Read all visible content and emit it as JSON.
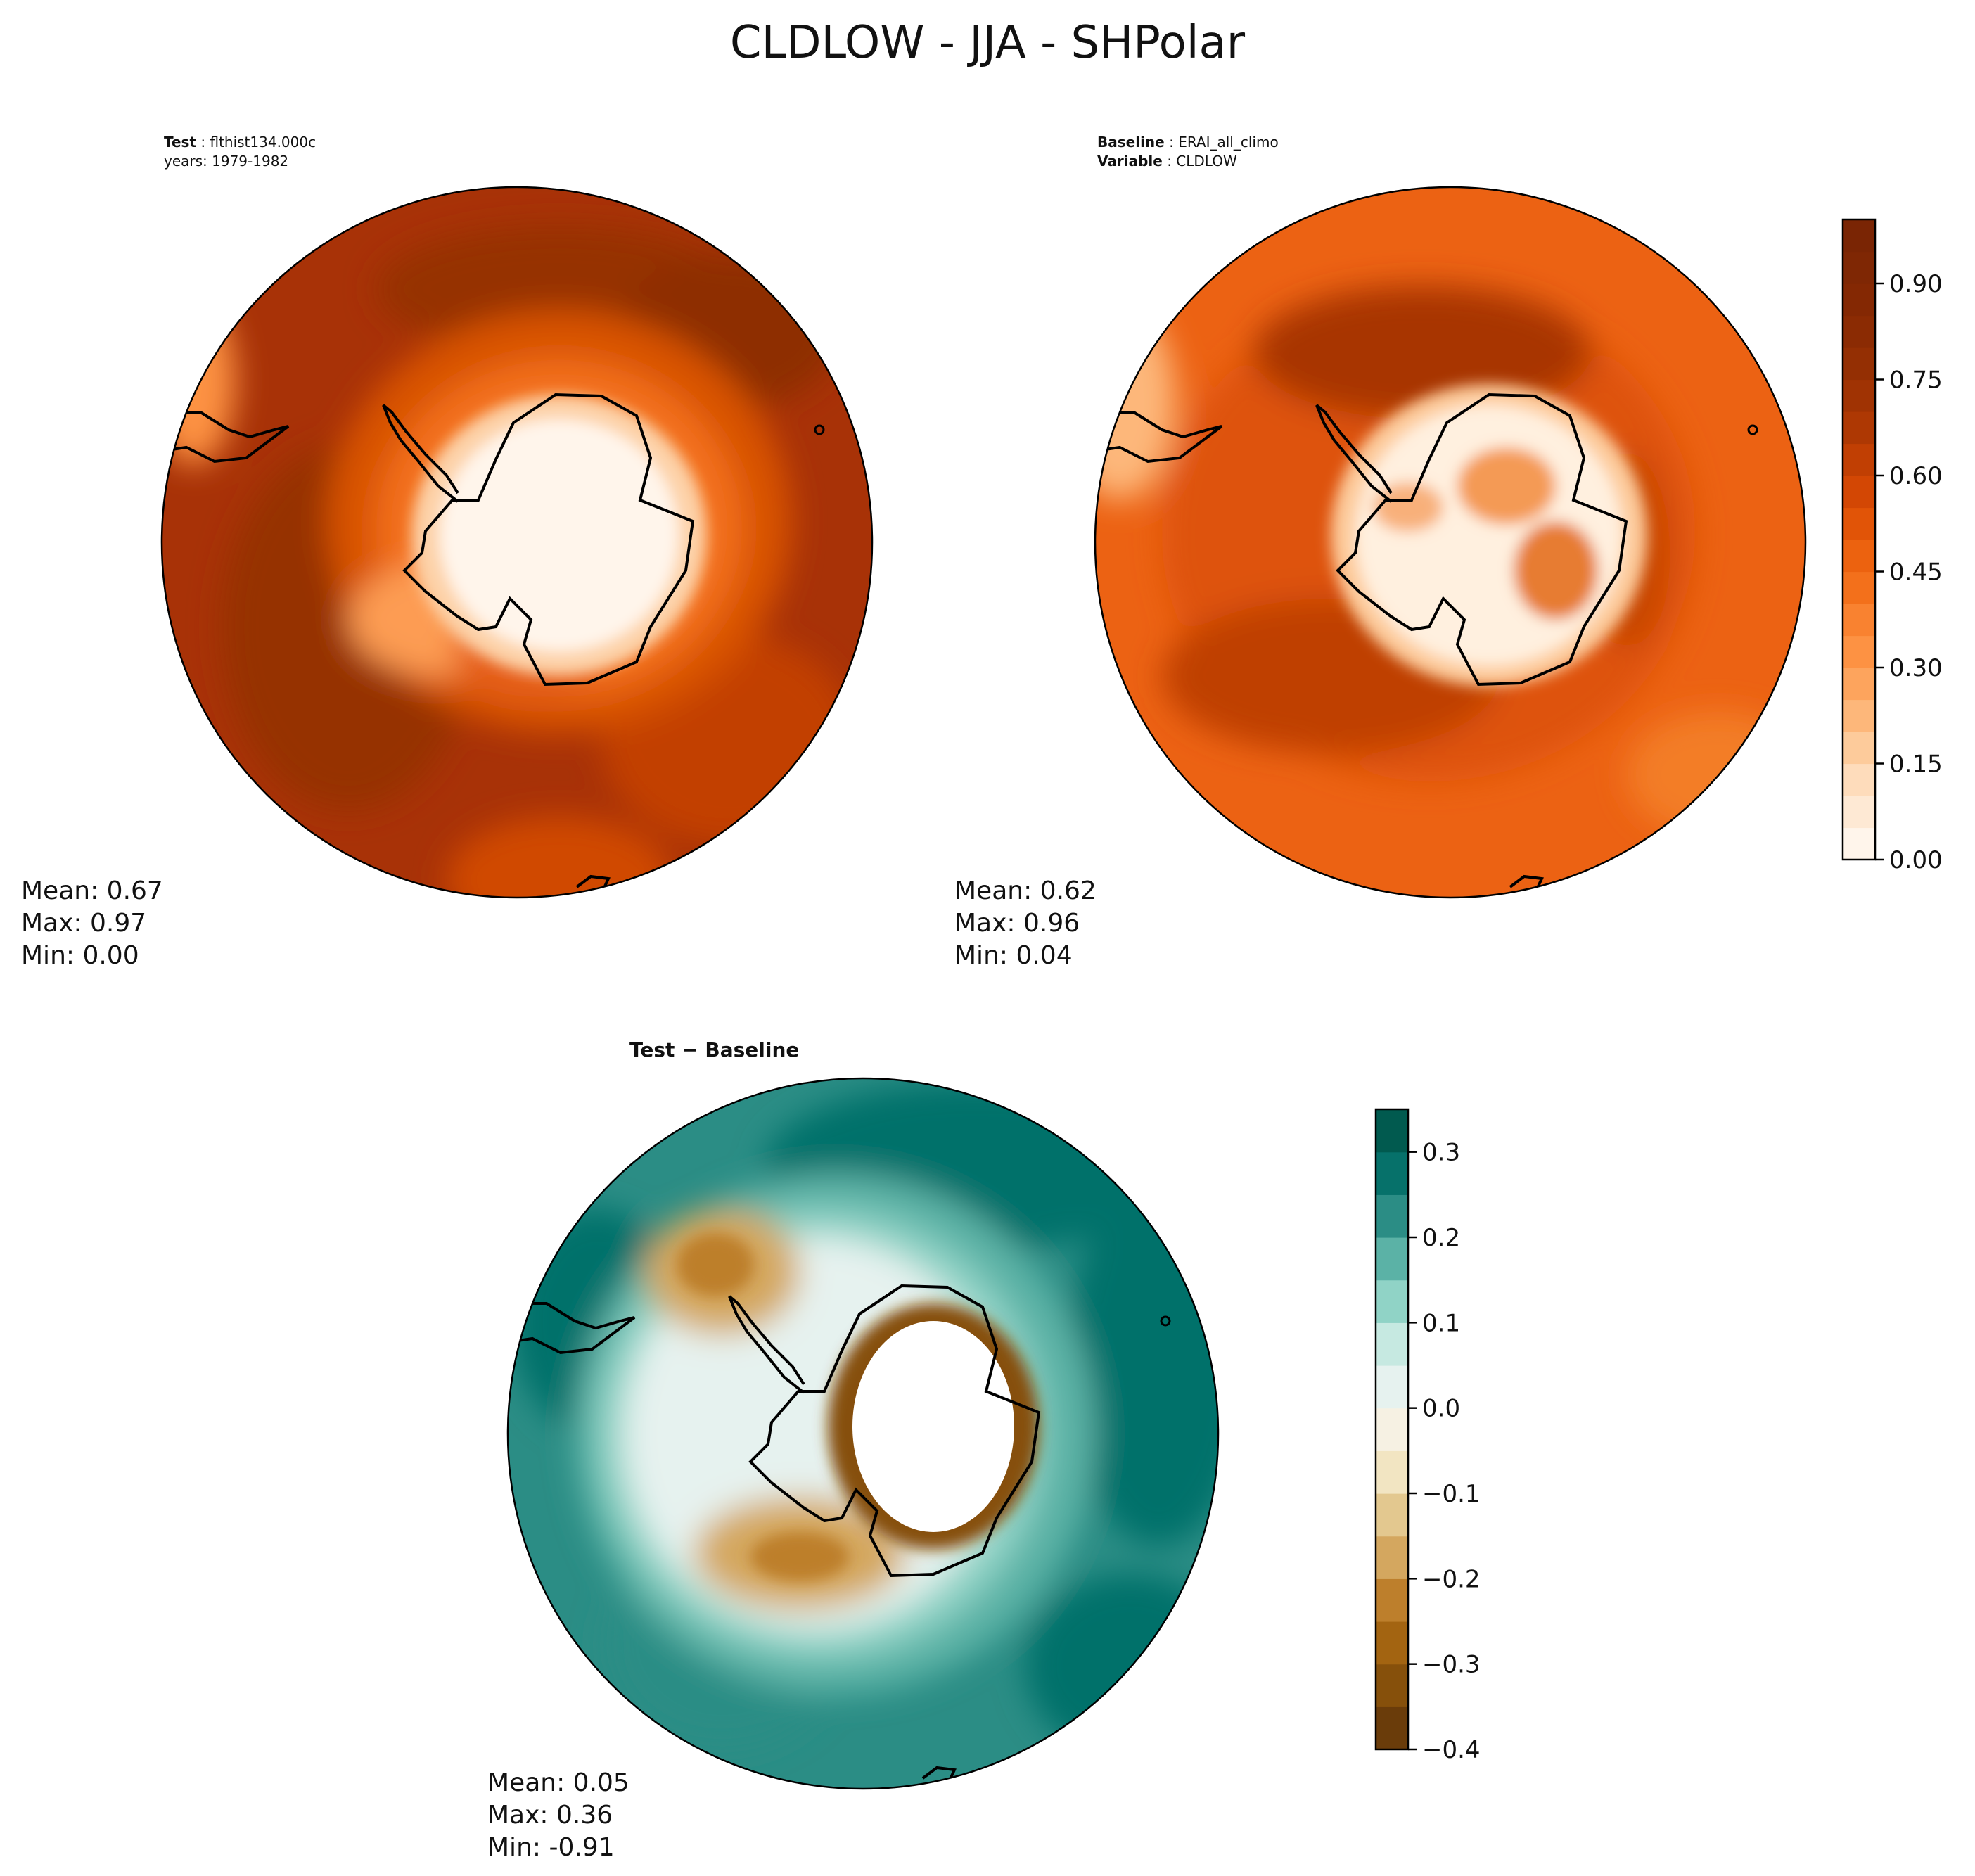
{
  "title": "CLDLOW - JJA - SHPolar",
  "colors": {
    "ocean_test": "#a83207",
    "ocean_base": "#ec6213",
    "land_light": "#fff5eb",
    "diff_teal": "#2b8d85",
    "diff_dark": "#016b61",
    "diff_brown": "#c99246"
  },
  "chart_data": [
    {
      "type": "heatmap",
      "name": "test",
      "label_bold": "Test",
      "label_value": "flthist134.000c",
      "subtitle": "years: 1979-1982",
      "stats": {
        "mean": "Mean:  0.67",
        "max": "Max:  0.97",
        "min": "Min:  0.00"
      },
      "colorscale": "Oranges",
      "range": [
        0.0,
        1.0
      ],
      "shared_colorbar": true
    },
    {
      "type": "heatmap",
      "name": "baseline",
      "label_bold": "Baseline",
      "label_value": "ERAI_all_climo",
      "label2_bold": "Variable",
      "label2_value": "CLDLOW",
      "stats": {
        "mean": "Mean:  0.62",
        "max": "Max:  0.96",
        "min": "Min:  0.04"
      },
      "colorscale": "Oranges",
      "range": [
        0.0,
        1.0
      ],
      "colorbar": {
        "ticks": [
          "0.00",
          "0.15",
          "0.30",
          "0.45",
          "0.60",
          "0.75",
          "0.90"
        ],
        "tick_values": [
          0.0,
          0.15,
          0.3,
          0.45,
          0.6,
          0.75,
          0.9
        ],
        "levels": [
          0.0,
          0.05,
          0.1,
          0.15,
          0.2,
          0.25,
          0.3,
          0.35,
          0.4,
          0.45,
          0.5,
          0.55,
          0.6,
          0.65,
          0.7,
          0.75,
          0.8,
          0.85,
          0.9,
          0.95,
          1.0
        ],
        "colors": [
          "#fff5eb",
          "#fee9d4",
          "#fedcbb",
          "#fdcb9b",
          "#fdb77a",
          "#fda45d",
          "#fd9243",
          "#f98230",
          "#f3701b",
          "#ec620f",
          "#e15407",
          "#d34704",
          "#c13f03",
          "#ae3803",
          "#a03303",
          "#942f03",
          "#8b2b03",
          "#842803",
          "#7f2704",
          "#7a2504"
        ]
      }
    },
    {
      "type": "heatmap",
      "name": "difference",
      "label": "Test − Baseline",
      "stats": {
        "mean": "Mean:  0.05",
        "max": "Max:  0.36",
        "min": "Min: -0.91"
      },
      "colorscale": "BrBG",
      "range": [
        -0.4,
        0.35
      ],
      "colorbar": {
        "ticks": [
          "−0.4",
          "−0.3",
          "−0.2",
          "−0.1",
          "0.0",
          "0.1",
          "0.2",
          "0.3"
        ],
        "tick_values": [
          -0.4,
          -0.3,
          -0.2,
          -0.1,
          0.0,
          0.1,
          0.2,
          0.3
        ],
        "levels": [
          -0.4,
          -0.35,
          -0.3,
          -0.25,
          -0.2,
          -0.15,
          -0.1,
          -0.05,
          0.0,
          0.05,
          0.1,
          0.15,
          0.2,
          0.25,
          0.3,
          0.35
        ],
        "colors": [
          "#6a3c0a",
          "#86500b",
          "#a36411",
          "#bd7f2c",
          "#d4a75f",
          "#e3c88f",
          "#f2e5c2",
          "#f6f1e3",
          "#e6f2ef",
          "#c6e9e1",
          "#90d3c6",
          "#5bb2a6",
          "#2b8d85",
          "#06716a",
          "#015a4f"
        ]
      }
    }
  ]
}
